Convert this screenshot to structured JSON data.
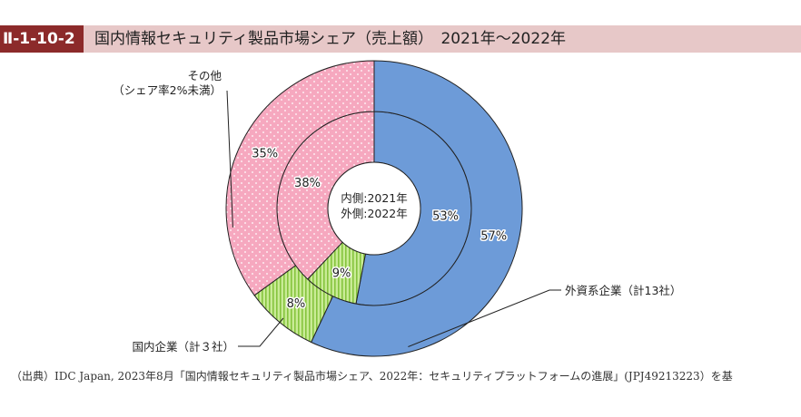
{
  "figure": {
    "id": "Ⅱ-1-10-2",
    "title": "国内情報セキュリティ製品市場シェア（売上額）　2021年〜2022年"
  },
  "source_note": "（出典）IDC Japan, 2023年8月「国内情報セキュリティ製品市場シェア、2022年：セキュリティプラットフォームの進展」(JPJ49213223）を基",
  "chart_data": {
    "type": "pie",
    "variant": "nested-donut",
    "center_label": [
      "内側:2021年",
      "外側:2022年"
    ],
    "categories": [
      "外資系企業（計13社）",
      "国内企業（計３社）",
      "その他（シェア率2%未満）"
    ],
    "category_label_lines": [
      [
        "外資系企業（計13社）"
      ],
      [
        "国内企業（計３社）"
      ],
      [
        "その他",
        "（シェア率2%未満）"
      ]
    ],
    "colors": [
      "#6d9bd8",
      "#b6e07a",
      "#f6a8bf"
    ],
    "series": [
      {
        "name": "内側:2021年",
        "ring": "inner",
        "values": [
          53,
          9,
          38
        ]
      },
      {
        "name": "外側:2022年",
        "ring": "outer",
        "values": [
          57,
          8,
          35
        ]
      }
    ],
    "value_suffix": "%",
    "start_angle": "12 o'clock",
    "direction": "clockwise",
    "legend": "callout labels"
  }
}
